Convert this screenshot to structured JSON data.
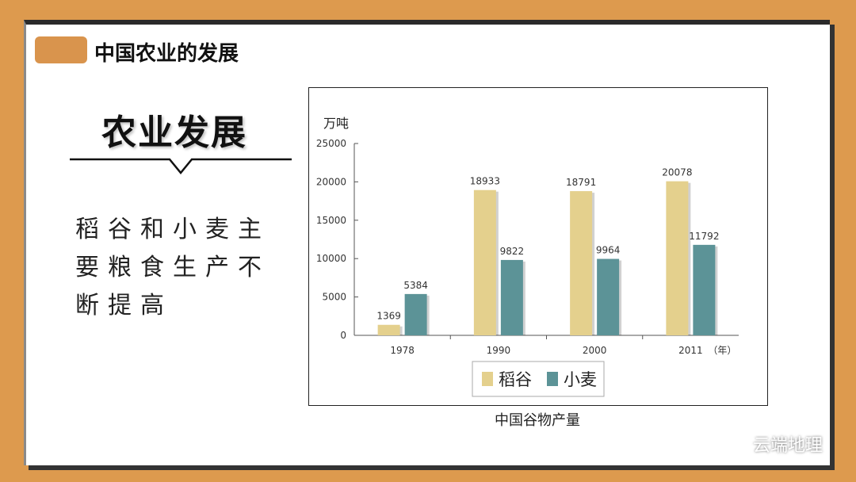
{
  "header": {
    "title": "中国农业的发展"
  },
  "section": {
    "title": "农业发展",
    "description": "稻谷和小麦主要粮食生产不断提高"
  },
  "chart_data": {
    "type": "bar",
    "title": "中国谷物产量",
    "ylabel": "万吨",
    "x_unit": "（年）",
    "categories": [
      "1978",
      "1990",
      "2000",
      "2011"
    ],
    "ylim": [
      0,
      25000
    ],
    "yticks": [
      "0",
      "5000",
      "10000",
      "15000",
      "20000",
      "25000"
    ],
    "series": [
      {
        "name": "稻谷",
        "values": [
          1369,
          18933,
          18791,
          20078
        ],
        "color": "#e4d08d"
      },
      {
        "name": "小麦",
        "values": [
          5384,
          9822,
          9964,
          11792
        ],
        "color": "#5c9397"
      }
    ],
    "legend_position": "bottom",
    "grid": false
  },
  "watermark": {
    "text": "云端地理",
    "icon": "wechat-icon"
  }
}
